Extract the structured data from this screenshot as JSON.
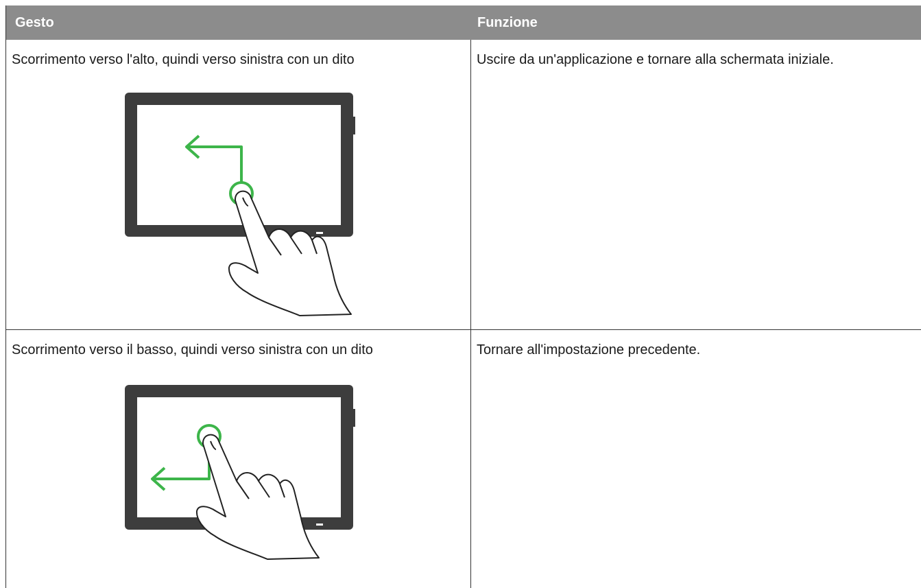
{
  "table": {
    "headers": [
      "Gesto",
      "Funzione"
    ],
    "rows": [
      [
        "Scorrimento verso l'alto, quindi verso sinistra con un dito",
        "Uscire da un'applicazione e tornare alla schermata iniziale."
      ],
      [
        "Scorrimento verso il basso, quindi verso sinistra con un dito",
        "Tornare all'impostazione precedente."
      ]
    ]
  }
}
